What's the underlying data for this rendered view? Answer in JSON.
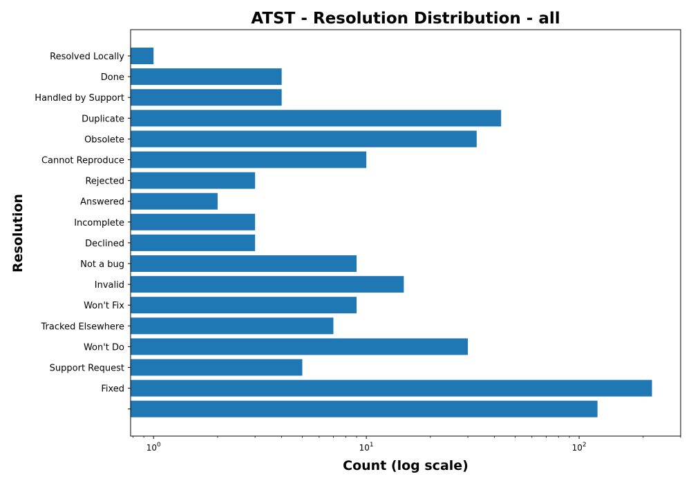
{
  "chart_data": {
    "type": "bar",
    "orientation": "horizontal",
    "title": "ATST - Resolution Distribution - all",
    "xlabel": "Count (log scale)",
    "ylabel": "Resolution",
    "x_scale": "log",
    "xlim": [
      0.78,
      300
    ],
    "x_ticks": [
      {
        "base": "10",
        "exp": "0",
        "value": 1
      },
      {
        "base": "10",
        "exp": "1",
        "value": 10
      },
      {
        "base": "10",
        "exp": "2",
        "value": 100
      }
    ],
    "grid": false,
    "bar_color": "#1f77b4",
    "categories": [
      "Resolved Locally",
      "Done",
      "Handled by Support",
      "Duplicate",
      "Obsolete",
      "Cannot Reproduce",
      "Rejected",
      "Answered",
      "Incomplete",
      "Declined",
      "Not a bug",
      "Invalid",
      "Won't Fix",
      "Tracked Elsewhere",
      "Won't Do",
      "Support Request",
      "Fixed",
      ""
    ],
    "values": [
      1,
      4,
      4,
      43,
      33,
      10,
      3,
      2,
      3,
      3,
      9,
      15,
      9,
      7,
      30,
      5,
      220,
      122
    ]
  }
}
